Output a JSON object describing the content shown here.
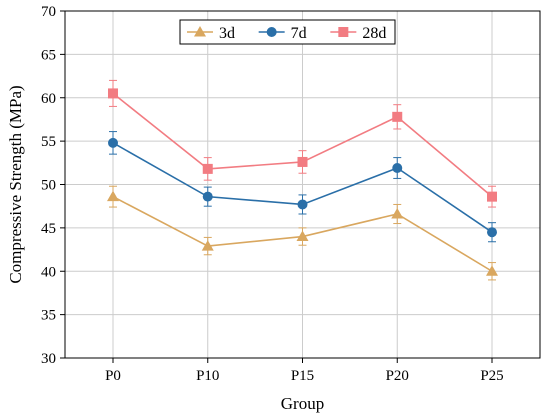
{
  "chart_data": {
    "type": "line",
    "title": "",
    "xlabel": "Group",
    "ylabel": "Compressive Strength (MPa)",
    "categories": [
      "P0",
      "P10",
      "P15",
      "P20",
      "P25"
    ],
    "ylim": [
      30,
      70
    ],
    "yticks": [
      "30",
      "35",
      "40",
      "45",
      "50",
      "55",
      "60",
      "65",
      "70"
    ],
    "grid": true,
    "legend_position": "top-center",
    "series": [
      {
        "name": "3d",
        "marker": "triangle",
        "color": "#d9a75f",
        "values": [
          48.6,
          42.9,
          44.0,
          46.6,
          40.0
        ],
        "errors": [
          1.2,
          1.0,
          1.0,
          1.1,
          1.0
        ]
      },
      {
        "name": "7d",
        "marker": "circle",
        "color": "#2a6fa8",
        "values": [
          54.8,
          48.6,
          47.7,
          51.9,
          44.5
        ],
        "errors": [
          1.3,
          1.1,
          1.1,
          1.2,
          1.1
        ]
      },
      {
        "name": "28d",
        "marker": "square",
        "color": "#f27c82",
        "values": [
          60.5,
          51.8,
          52.6,
          57.8,
          48.6
        ],
        "errors": [
          1.5,
          1.3,
          1.3,
          1.4,
          1.2
        ]
      }
    ]
  }
}
